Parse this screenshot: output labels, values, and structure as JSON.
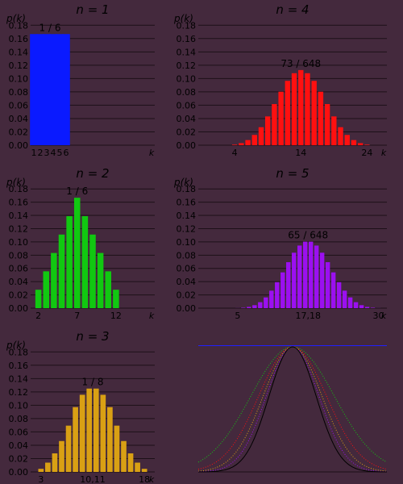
{
  "colors": {
    "background": "#44293d",
    "grid": "#1c1018",
    "text": "#000000",
    "n1": "#0a1aff",
    "n2": "#11c811",
    "n3": "#d9a014",
    "n4": "#ff1010",
    "n5": "#9b10f0"
  },
  "chart_data": [
    {
      "type": "bar",
      "title": "n = 1",
      "ylabel": "p(k)",
      "xlabel": "k",
      "ylim": [
        0,
        0.19
      ],
      "yticks": [
        "0.00",
        "0.02",
        "0.04",
        "0.06",
        "0.08",
        "0.10",
        "0.12",
        "0.14",
        "0.16",
        "0.18"
      ],
      "xticks": [
        "1",
        "2",
        "3",
        "4",
        "5",
        "6"
      ],
      "annotation": "1 / 6",
      "color": "#0a1aff",
      "categories": [
        1,
        2,
        3,
        4,
        5,
        6
      ],
      "values": [
        0.1667,
        0.1667,
        0.1667,
        0.1667,
        0.1667,
        0.1667
      ]
    },
    {
      "type": "bar",
      "title": "n = 2",
      "ylabel": "p(k)",
      "xlabel": "k",
      "ylim": [
        0,
        0.19
      ],
      "yticks": [
        "0.00",
        "0.02",
        "0.04",
        "0.06",
        "0.08",
        "0.10",
        "0.12",
        "0.14",
        "0.16",
        "0.18"
      ],
      "xticks": [
        "2",
        "7",
        "12"
      ],
      "annotation": "1 / 6",
      "color": "#11c811",
      "categories": [
        2,
        3,
        4,
        5,
        6,
        7,
        8,
        9,
        10,
        11,
        12
      ],
      "values": [
        0.0278,
        0.0556,
        0.0833,
        0.1111,
        0.1389,
        0.1667,
        0.1389,
        0.1111,
        0.0833,
        0.0556,
        0.0278
      ]
    },
    {
      "type": "bar",
      "title": "n = 3",
      "ylabel": "p(k)",
      "xlabel": "k",
      "ylim": [
        0,
        0.19
      ],
      "yticks": [
        "0.00",
        "0.02",
        "0.04",
        "0.06",
        "0.08",
        "0.10",
        "0.12",
        "0.14",
        "0.16",
        "0.18"
      ],
      "xticks": [
        "3",
        "10,11",
        "18"
      ],
      "annotation": "1 / 8",
      "color": "#d9a014",
      "categories": [
        3,
        4,
        5,
        6,
        7,
        8,
        9,
        10,
        11,
        12,
        13,
        14,
        15,
        16,
        17,
        18
      ],
      "values": [
        0.0046,
        0.0139,
        0.0278,
        0.0463,
        0.0694,
        0.0972,
        0.1157,
        0.125,
        0.125,
        0.1157,
        0.0972,
        0.0694,
        0.0463,
        0.0278,
        0.0139,
        0.0046
      ]
    },
    {
      "type": "bar",
      "title": "n = 4",
      "ylabel": "p(k)",
      "xlabel": "k",
      "ylim": [
        0,
        0.19
      ],
      "yticks": [
        "0.00",
        "0.02",
        "0.04",
        "0.06",
        "0.08",
        "0.10",
        "0.12",
        "0.14",
        "0.16",
        "0.18"
      ],
      "xticks": [
        "4",
        "14",
        "24"
      ],
      "annotation": "73 / 648",
      "color": "#ff1010",
      "categories": [
        4,
        5,
        6,
        7,
        8,
        9,
        10,
        11,
        12,
        13,
        14,
        15,
        16,
        17,
        18,
        19,
        20,
        21,
        22,
        23,
        24
      ],
      "values": [
        0.0008,
        0.0031,
        0.0077,
        0.0154,
        0.027,
        0.0432,
        0.0617,
        0.0802,
        0.0965,
        0.108,
        0.1127,
        0.108,
        0.0965,
        0.0802,
        0.0617,
        0.0432,
        0.027,
        0.0154,
        0.0077,
        0.0031,
        0.0008
      ]
    },
    {
      "type": "bar",
      "title": "n = 5",
      "ylabel": "p(k)",
      "xlabel": "k",
      "ylim": [
        0,
        0.19
      ],
      "yticks": [
        "0.00",
        "0.02",
        "0.04",
        "0.06",
        "0.08",
        "0.10",
        "0.12",
        "0.14",
        "0.16",
        "0.18"
      ],
      "xticks": [
        "5",
        "17,18",
        "30"
      ],
      "annotation": "65 / 648",
      "color": "#9b10f0",
      "categories": [
        5,
        6,
        7,
        8,
        9,
        10,
        11,
        12,
        13,
        14,
        15,
        16,
        17,
        18,
        19,
        20,
        21,
        22,
        23,
        24,
        25,
        26,
        27,
        28,
        29,
        30
      ],
      "values": [
        0.0001,
        0.0006,
        0.0019,
        0.0045,
        0.009,
        0.0162,
        0.0264,
        0.0392,
        0.054,
        0.0694,
        0.0837,
        0.0945,
        0.1003,
        0.1003,
        0.0945,
        0.0837,
        0.0694,
        0.054,
        0.0392,
        0.0264,
        0.0162,
        0.009,
        0.0045,
        0.0019,
        0.0006,
        0.0001
      ]
    },
    {
      "type": "line",
      "title": "",
      "xlim": [
        -4,
        4
      ],
      "ylim": [
        0,
        1
      ],
      "series": [
        {
          "color": "#ff1010",
          "sigma": 1.44,
          "style": "dotted"
        },
        {
          "color": "#11c811",
          "sigma": 1.77,
          "style": "dotted"
        },
        {
          "color": "#d9a014",
          "sigma": 1.25,
          "style": "dotted"
        },
        {
          "color": "#9b10f0",
          "sigma": 1.12,
          "style": "dotted"
        },
        {
          "color": "#000000",
          "sigma": 1.0,
          "style": "solid"
        }
      ],
      "top_line_color": "#2020ff"
    }
  ]
}
